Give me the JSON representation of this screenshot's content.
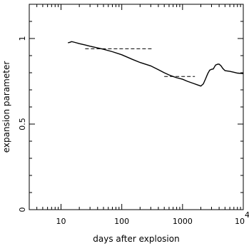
{
  "chart_data": {
    "type": "line",
    "title": "",
    "xlabel": "days after explosion",
    "ylabel": "expansion parameter",
    "xscale": "log",
    "xlim": [
      3,
      10000
    ],
    "ylim": [
      0,
      1.2
    ],
    "x_ticks": [
      {
        "value": 10,
        "label": "10"
      },
      {
        "value": 100,
        "label": "100"
      },
      {
        "value": 1000,
        "label": "1000"
      },
      {
        "value": 10000,
        "label": "10",
        "exponent": "4"
      }
    ],
    "y_ticks": [
      {
        "value": 0,
        "label": "0"
      },
      {
        "value": 0.5,
        "label": "0.5"
      },
      {
        "value": 1,
        "label": "1"
      }
    ],
    "grid": false,
    "legend": "none",
    "series": [
      {
        "style": "solid",
        "x": [
          13,
          14,
          15,
          17,
          20,
          25,
          30,
          40,
          50,
          70,
          100,
          150,
          200,
          300,
          400,
          500,
          600,
          700,
          800,
          1000,
          1200,
          1500,
          1800,
          2000,
          2200,
          2400,
          2600,
          2800,
          3000,
          3200,
          3500,
          3800,
          4000,
          4300,
          4600,
          5000,
          6000,
          7000,
          8000,
          10000
        ],
        "y": [
          0.975,
          0.978,
          0.982,
          0.977,
          0.97,
          0.962,
          0.955,
          0.945,
          0.937,
          0.923,
          0.905,
          0.878,
          0.86,
          0.84,
          0.818,
          0.8,
          0.787,
          0.778,
          0.771,
          0.762,
          0.75,
          0.738,
          0.728,
          0.722,
          0.735,
          0.765,
          0.795,
          0.815,
          0.82,
          0.822,
          0.845,
          0.85,
          0.85,
          0.84,
          0.825,
          0.812,
          0.808,
          0.803,
          0.798,
          0.795
        ]
      },
      {
        "style": "dashed",
        "x": [
          25,
          330
        ],
        "y": [
          0.94,
          0.94
        ]
      },
      {
        "style": "dashed",
        "x": [
          500,
          1600
        ],
        "y": [
          0.778,
          0.778
        ]
      }
    ]
  }
}
